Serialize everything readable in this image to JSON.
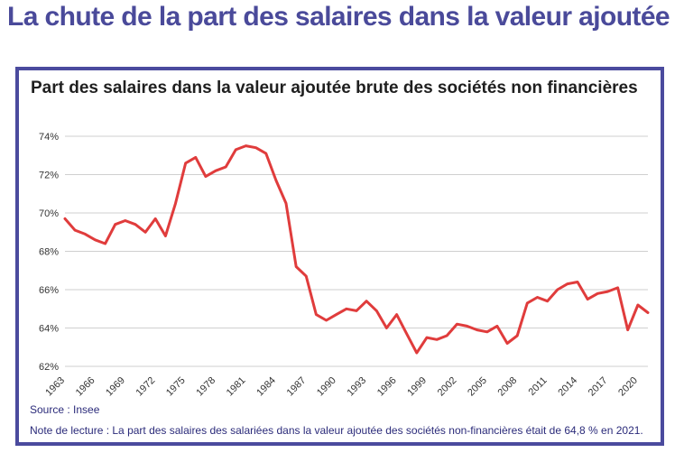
{
  "header": {
    "title": "La chute de la part des salaires dans la valeur ajoutée"
  },
  "chart_data": {
    "type": "line",
    "title": "Part des salaires dans la valeur ajoutée brute des sociétés non financières",
    "xlabel": "",
    "ylabel": "",
    "xlim": [
      1963,
      2021
    ],
    "ylim": [
      62,
      74
    ],
    "yticks": [
      62,
      64,
      66,
      68,
      70,
      72,
      74
    ],
    "ytick_labels": [
      "62%",
      "64%",
      "66%",
      "68%",
      "70%",
      "72%",
      "74%"
    ],
    "xticks": [
      1963,
      1966,
      1969,
      1972,
      1975,
      1978,
      1981,
      1984,
      1987,
      1990,
      1993,
      1996,
      1999,
      2002,
      2005,
      2008,
      2011,
      2014,
      2017,
      2020
    ],
    "xtick_labels": [
      "1963",
      "1966",
      "1969",
      "1972",
      "1975",
      "1978",
      "1981",
      "1984",
      "1987",
      "1990",
      "1993",
      "1996",
      "1999",
      "2002",
      "2005",
      "2008",
      "2011",
      "2014",
      "2017",
      "2020"
    ],
    "grid": true,
    "line_color": "#e03c3c",
    "series": [
      {
        "x": [
          1963,
          1964,
          1965,
          1966,
          1967,
          1968,
          1969,
          1970,
          1971,
          1972,
          1973,
          1974,
          1975,
          1976,
          1977,
          1978,
          1979,
          1980,
          1981,
          1982,
          1983,
          1984,
          1985,
          1986,
          1987,
          1988,
          1989,
          1990,
          1991,
          1992,
          1993,
          1994,
          1995,
          1996,
          1997,
          1998,
          1999,
          2000,
          2001,
          2002,
          2003,
          2004,
          2005,
          2006,
          2007,
          2008,
          2009,
          2010,
          2011,
          2012,
          2013,
          2014,
          2015,
          2016,
          2017,
          2018,
          2019,
          2020,
          2021
        ],
        "values": [
          69.7,
          69.1,
          68.9,
          68.6,
          68.4,
          69.4,
          69.6,
          69.4,
          69.0,
          69.7,
          68.8,
          70.5,
          72.6,
          72.9,
          71.9,
          72.2,
          72.4,
          73.3,
          73.5,
          73.4,
          73.1,
          71.7,
          70.5,
          67.2,
          66.7,
          64.7,
          64.4,
          64.7,
          65.0,
          64.9,
          65.4,
          64.9,
          64.0,
          64.7,
          63.7,
          62.7,
          63.5,
          63.4,
          63.6,
          64.2,
          64.1,
          63.9,
          63.8,
          64.1,
          63.2,
          63.6,
          65.3,
          65.6,
          65.4,
          66.0,
          66.3,
          66.4,
          65.5,
          65.8,
          65.9,
          66.1,
          63.9,
          65.2,
          64.8
        ]
      }
    ]
  },
  "footer": {
    "source": "Source : Insee",
    "note": "Note de lecture : La part des salaires des salariées dans la valeur ajoutée des sociétés non-financières était de 64,8 % en 2021."
  },
  "colors": {
    "accent": "#4a4a9a",
    "frame": "#4b4b9e",
    "line": "#e03c3c",
    "grid": "#cfcfcf"
  }
}
